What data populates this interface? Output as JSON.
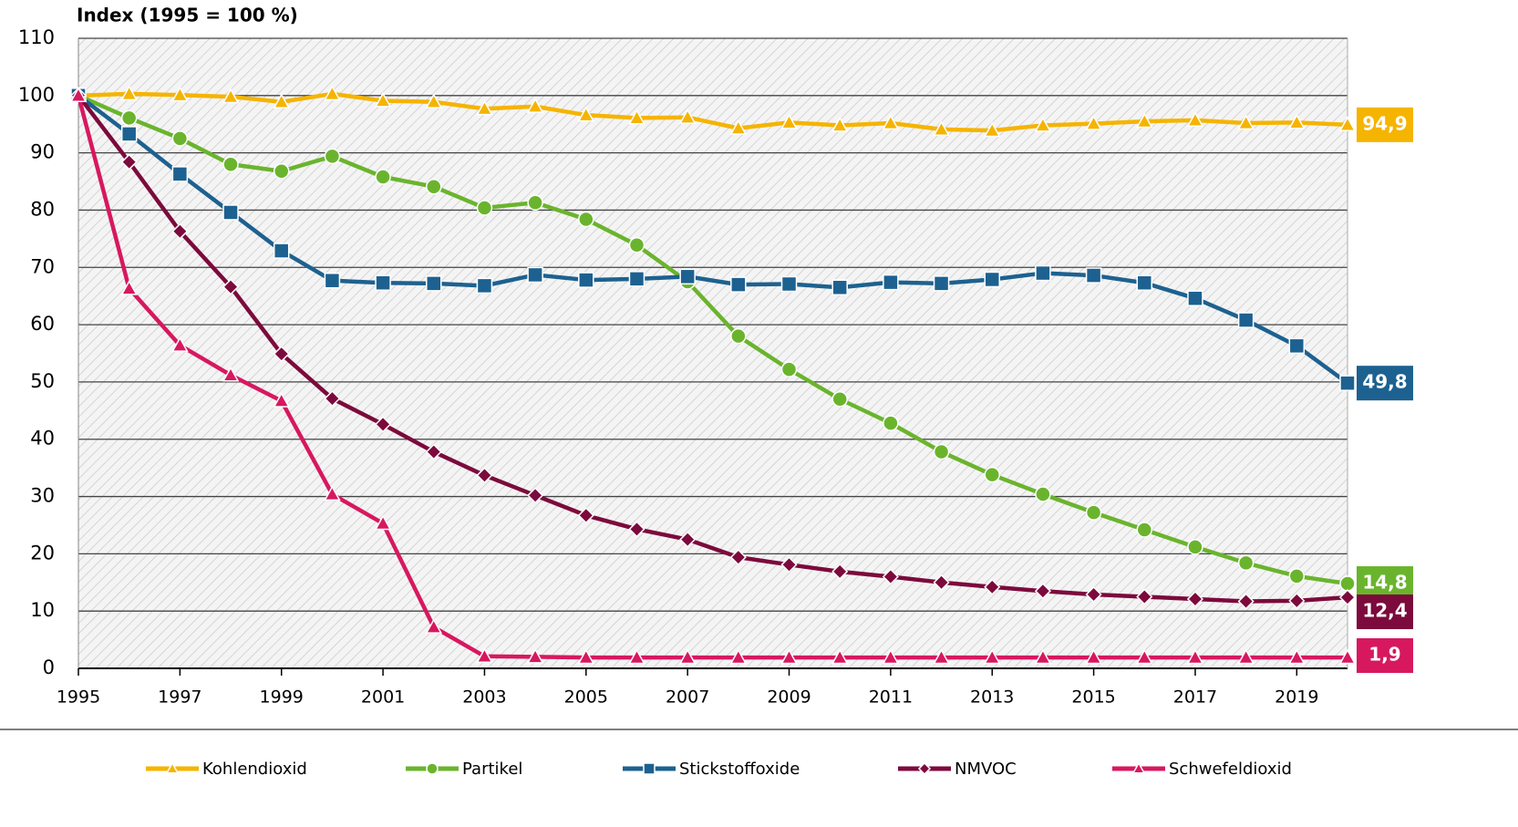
{
  "chart_data": {
    "type": "line",
    "y_axis_label": "Index (1995 = 100 %)",
    "x": [
      1995,
      1996,
      1997,
      1998,
      1999,
      2000,
      2001,
      2002,
      2003,
      2004,
      2005,
      2006,
      2007,
      2008,
      2009,
      2010,
      2011,
      2012,
      2013,
      2014,
      2015,
      2016,
      2017,
      2018,
      2019,
      2020
    ],
    "xlim": [
      1995,
      2020
    ],
    "xticks": [
      1995,
      1997,
      1999,
      2001,
      2003,
      2005,
      2007,
      2009,
      2011,
      2013,
      2015,
      2017,
      2019
    ],
    "ylim": [
      0,
      110
    ],
    "yticks": [
      0,
      10,
      20,
      30,
      40,
      50,
      60,
      70,
      80,
      90,
      100,
      110
    ],
    "grid": true,
    "legend": "bottom",
    "series": [
      {
        "name": "Kohlendioxid",
        "color": "#f5b400",
        "marker": "triangle",
        "values": [
          100,
          100.3,
          100.1,
          99.8,
          98.9,
          100.3,
          99.1,
          98.9,
          97.7,
          98.1,
          96.6,
          96.1,
          96.2,
          94.3,
          95.3,
          94.8,
          95.2,
          94.1,
          93.9,
          94.8,
          95.1,
          95.5,
          95.7,
          95.2,
          95.3,
          94.9
        ],
        "value_labels": [
          null,
          null,
          null,
          null,
          null,
          null,
          null,
          null,
          null,
          null,
          null,
          null,
          null,
          null,
          null,
          null,
          null,
          null,
          null,
          null,
          null,
          null,
          null,
          null,
          null,
          "94,9"
        ]
      },
      {
        "name": "Partikel",
        "color": "#6ab42d",
        "marker": "circle",
        "values": [
          100,
          96.1,
          92.5,
          88,
          86.8,
          89.4,
          85.8,
          84.1,
          80.4,
          81.3,
          78.4,
          73.9,
          67.5,
          58,
          52.2,
          47,
          42.8,
          37.8,
          33.8,
          30.4,
          27.2,
          24.2,
          21.2,
          18.4,
          16.1,
          14.8
        ],
        "value_labels": [
          null,
          null,
          null,
          null,
          null,
          null,
          null,
          null,
          null,
          null,
          null,
          null,
          null,
          null,
          null,
          null,
          null,
          null,
          null,
          null,
          null,
          null,
          null,
          null,
          null,
          "14,8"
        ]
      },
      {
        "name": "Stickstoffoxide",
        "color": "#1d6190",
        "marker": "square",
        "values": [
          100,
          93.3,
          86.3,
          79.6,
          72.9,
          67.7,
          67.3,
          67.2,
          66.8,
          68.7,
          67.8,
          68,
          68.4,
          67,
          67.1,
          66.5,
          67.4,
          67.2,
          67.9,
          69,
          68.6,
          67.3,
          64.6,
          60.8,
          56.3,
          49.8
        ],
        "value_labels": [
          null,
          null,
          null,
          null,
          null,
          null,
          null,
          null,
          null,
          null,
          null,
          null,
          null,
          null,
          null,
          null,
          null,
          null,
          null,
          null,
          null,
          null,
          null,
          null,
          null,
          "49,8"
        ]
      },
      {
        "name": "NMVOC",
        "color": "#7c0a3c",
        "marker": "diamond",
        "values": [
          100,
          88.4,
          76.3,
          66.6,
          54.9,
          47.1,
          42.6,
          37.8,
          33.7,
          30.2,
          26.7,
          24.3,
          22.5,
          19.4,
          18.1,
          16.9,
          16,
          15,
          14.2,
          13.5,
          12.9,
          12.5,
          12.1,
          11.7,
          11.8,
          12.4
        ],
        "value_labels": [
          null,
          null,
          null,
          null,
          null,
          null,
          null,
          null,
          null,
          null,
          null,
          null,
          null,
          null,
          null,
          null,
          null,
          null,
          null,
          null,
          null,
          null,
          null,
          null,
          null,
          "12,4"
        ]
      },
      {
        "name": "Schwefeldioxid",
        "color": "#d7185f",
        "marker": "triangle",
        "values": [
          100,
          66.3,
          56.4,
          51.2,
          46.7,
          30.4,
          25.3,
          7.2,
          2.1,
          2,
          1.9,
          1.9,
          1.9,
          1.9,
          1.9,
          1.9,
          1.9,
          1.9,
          1.9,
          1.9,
          1.9,
          1.9,
          1.9,
          1.9,
          1.9,
          1.9
        ],
        "value_labels": [
          null,
          null,
          null,
          null,
          null,
          null,
          null,
          null,
          null,
          null,
          null,
          null,
          null,
          null,
          null,
          null,
          null,
          null,
          null,
          null,
          null,
          null,
          null,
          null,
          null,
          "1,9"
        ]
      }
    ]
  }
}
